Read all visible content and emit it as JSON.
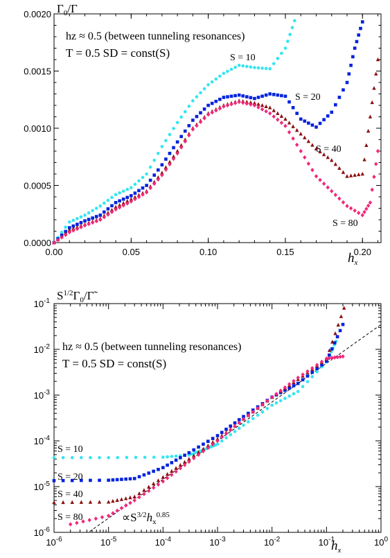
{
  "chart_data": [
    {
      "type": "scatter",
      "ylabel": "Γ0/Γ",
      "xlabel": "hx",
      "xlim": [
        0.0,
        0.212
      ],
      "ylim": [
        0.0,
        0.002
      ],
      "x_ticks": [
        "0.00",
        "0.05",
        "0.10",
        "0.15",
        "0.20"
      ],
      "y_ticks": [
        "0.0000",
        "0.0005",
        "0.0010",
        "0.0015",
        "0.0020"
      ],
      "annotations": [
        "hz ≈ 0.5 (between tunneling resonances)",
        "T = 0.5 SD = const(S)"
      ],
      "series": [
        {
          "name": "S = 10",
          "color": "#33e6f0",
          "marker": "circle",
          "x": [
            0.0,
            0.01,
            0.02,
            0.03,
            0.04,
            0.05,
            0.06,
            0.07,
            0.08,
            0.09,
            0.1,
            0.11,
            0.12,
            0.13,
            0.14,
            0.15,
            0.156
          ],
          "y": [
            0.0,
            0.00018,
            0.00024,
            0.00032,
            0.00042,
            0.00048,
            0.0006,
            0.00084,
            0.00105,
            0.00124,
            0.00138,
            0.00148,
            0.00155,
            0.00153,
            0.00152,
            0.0017,
            0.00194
          ]
        },
        {
          "name": "S = 20",
          "color": "#0022dd",
          "marker": "square",
          "x": [
            0.0,
            0.01,
            0.02,
            0.03,
            0.04,
            0.05,
            0.06,
            0.07,
            0.08,
            0.09,
            0.1,
            0.11,
            0.12,
            0.13,
            0.14,
            0.15,
            0.16,
            0.17,
            0.18,
            0.19,
            0.195,
            0.2
          ],
          "y": [
            0.0,
            0.00013,
            0.00019,
            0.00024,
            0.00035,
            0.00041,
            0.0005,
            0.00068,
            0.00088,
            0.00107,
            0.0012,
            0.00127,
            0.00129,
            0.00126,
            0.0013,
            0.00128,
            0.00108,
            0.00101,
            0.00114,
            0.0014,
            0.0017,
            0.00193
          ]
        },
        {
          "name": "S = 40",
          "color": "#8a0f0f",
          "marker": "triangle",
          "x": [
            0.0,
            0.01,
            0.02,
            0.03,
            0.04,
            0.05,
            0.06,
            0.07,
            0.08,
            0.09,
            0.1,
            0.11,
            0.12,
            0.13,
            0.14,
            0.15,
            0.16,
            0.17,
            0.18,
            0.19,
            0.2,
            0.205,
            0.21
          ],
          "y": [
            0.0,
            0.00011,
            0.00016,
            0.00021,
            0.00031,
            0.00038,
            0.00045,
            0.00061,
            0.0008,
            0.001,
            0.00113,
            0.0012,
            0.00124,
            0.00122,
            0.00118,
            0.00108,
            0.00095,
            0.00082,
            0.00072,
            0.00058,
            0.0006,
            0.0011,
            0.0016
          ]
        },
        {
          "name": "S = 80",
          "color": "#f0287a",
          "marker": "diamond",
          "x": [
            0.0,
            0.01,
            0.02,
            0.03,
            0.04,
            0.05,
            0.06,
            0.07,
            0.08,
            0.09,
            0.1,
            0.11,
            0.12,
            0.13,
            0.14,
            0.15,
            0.16,
            0.17,
            0.18,
            0.19,
            0.2,
            0.205,
            0.21
          ],
          "y": [
            0.0,
            9e-05,
            0.00015,
            0.0002,
            0.00029,
            0.00036,
            0.00044,
            0.00059,
            0.00078,
            0.00099,
            0.00112,
            0.00119,
            0.00123,
            0.0012,
            0.00113,
            0.00102,
            0.0008,
            0.00058,
            0.00045,
            0.00032,
            0.00024,
            0.00035,
            0.0008
          ]
        }
      ]
    },
    {
      "type": "scatter",
      "scale": "log-log",
      "ylabel": "S1/2Γ0/Γ̃",
      "xlabel": "hx",
      "xlim": [
        1e-06,
        1.0
      ],
      "ylim": [
        1e-06,
        0.1
      ],
      "x_ticks": [
        "10-6",
        "10-5",
        "10-4",
        "10-3",
        "10-2",
        "10-1",
        "100"
      ],
      "y_ticks": [
        "10-6",
        "10-5",
        "10-4",
        "10-3",
        "10-2",
        "10-1"
      ],
      "annotations": [
        "hz ≈ 0.5 (between tunneling resonances)",
        "T = 0.5 SD = const(S)"
      ],
      "fit_line": {
        "label": "∝S3/2hx0.85",
        "slope": 0.85,
        "x": [
          4.5e-06,
          1.0
        ],
        "y": [
          1.04e-06,
          0.0348
        ]
      },
      "series": [
        {
          "name": "S = 10",
          "color": "#33e6f0",
          "marker": "circle",
          "x": [
            1e-06,
            1e-05,
            0.0001,
            0.0003,
            0.0006,
            0.001,
            0.003,
            0.01,
            0.03,
            0.1,
            0.15
          ],
          "y": [
            4.3e-05,
            4.3e-05,
            4.4e-05,
            4.9e-05,
            6.6e-05,
            8.5e-05,
            0.00022,
            0.0006,
            0.0012,
            0.0053,
            0.015
          ]
        },
        {
          "name": "S = 20",
          "color": "#0022dd",
          "marker": "square",
          "x": [
            1e-06,
            1e-05,
            3e-05,
            0.0001,
            0.0003,
            0.001,
            0.003,
            0.01,
            0.03,
            0.1,
            0.2
          ],
          "y": [
            1.35e-05,
            1.38e-05,
            1.5e-05,
            2.6e-05,
            5.5e-05,
            0.00013,
            0.00034,
            0.0009,
            0.0018,
            0.0055,
            0.035
          ]
        },
        {
          "name": "S = 40",
          "color": "#8a0f0f",
          "marker": "triangle",
          "x": [
            1e-06,
            1e-05,
            3e-05,
            0.0001,
            0.0003,
            0.001,
            0.003,
            0.01,
            0.03,
            0.1,
            0.21
          ],
          "y": [
            4.5e-06,
            4.6e-06,
            6e-06,
            1.6e-05,
            4e-05,
            0.00011,
            0.0003,
            0.0009,
            0.0022,
            0.0062,
            0.08
          ]
        },
        {
          "name": "S = 80",
          "color": "#f0287a",
          "marker": "diamond",
          "x": [
            2e-06,
            1e-05,
            3e-05,
            0.0001,
            0.0003,
            0.001,
            0.003,
            0.01,
            0.03,
            0.1,
            0.2
          ],
          "y": [
            1.5e-06,
            2.3e-06,
            5e-06,
            1.3e-05,
            3.5e-05,
            0.0001,
            0.0003,
            0.0009,
            0.0024,
            0.0063,
            0.007
          ]
        }
      ]
    }
  ]
}
